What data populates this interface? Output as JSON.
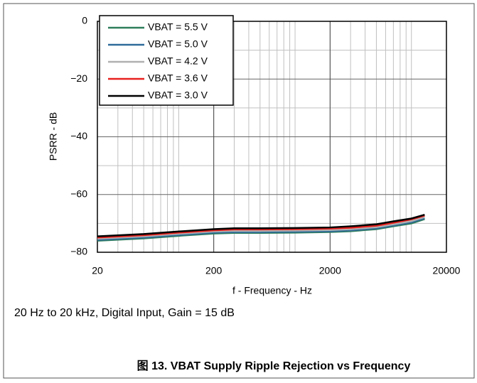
{
  "chart_data": {
    "type": "line",
    "x_label": "f - Frequency - Hz",
    "y_label": "PSRR - dB",
    "note": "20 Hz to 20 kHz, Digital Input, Gain = 15 dB",
    "caption": "图 13. VBAT Supply Ripple Rejection vs Frequency",
    "x": [
      20,
      50,
      100,
      200,
      300,
      500,
      1000,
      2000,
      3000,
      5000,
      7000,
      10000,
      13000
    ],
    "series": [
      {
        "name": "VBAT = 5.5 V",
        "color": "#2e7d5b",
        "values": [
          -76,
          -75.2,
          -74.3,
          -73.5,
          -73.3,
          -73.3,
          -73.2,
          -73,
          -72.7,
          -72,
          -71,
          -70,
          -68.5
        ]
      },
      {
        "name": "VBAT = 5.0 V",
        "color": "#2f6b9a",
        "values": [
          -75.7,
          -74.9,
          -74,
          -73.2,
          -73,
          -73,
          -72.9,
          -72.7,
          -72.4,
          -71.7,
          -70.7,
          -69.6,
          -68.2
        ]
      },
      {
        "name": "VBAT = 4.2 V",
        "color": "#b0b0b0",
        "values": [
          -75.3,
          -74.5,
          -73.6,
          -72.8,
          -72.6,
          -72.6,
          -72.5,
          -72.3,
          -72,
          -71.3,
          -70.3,
          -69.2,
          -67.8
        ]
      },
      {
        "name": "VBAT = 3.6 V",
        "color": "#e8201e",
        "values": [
          -74.9,
          -74.1,
          -73.2,
          -72.4,
          -72.1,
          -72.1,
          -72,
          -71.8,
          -71.5,
          -70.8,
          -69.8,
          -68.6,
          -67.3
        ]
      },
      {
        "name": "VBAT = 3.0 V",
        "color": "#000000",
        "values": [
          -74.5,
          -73.7,
          -72.8,
          -72,
          -71.7,
          -71.7,
          -71.6,
          -71.4,
          -71,
          -70.3,
          -69.3,
          -68.3,
          -67
        ]
      }
    ],
    "xlim": [
      20,
      20000
    ],
    "xticks": [
      20,
      200,
      2000,
      20000
    ],
    "x_log": true,
    "ylim": [
      -80,
      0
    ],
    "yticks": [
      {
        "value": -80,
        "label": "−80"
      },
      {
        "value": -60,
        "label": "−60"
      },
      {
        "value": -40,
        "label": "−40"
      },
      {
        "value": -20,
        "label": "−20"
      },
      0
    ],
    "grid": true,
    "minor_grid": true,
    "legend": "upper left"
  }
}
